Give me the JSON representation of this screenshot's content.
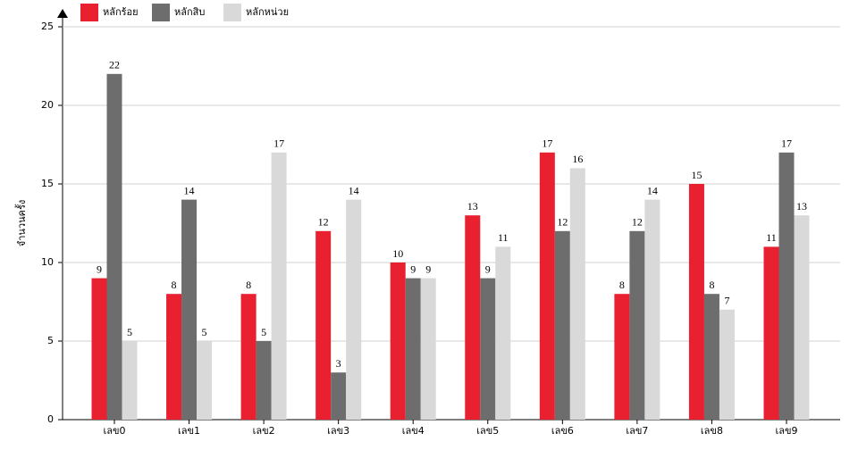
{
  "chart_data": {
    "type": "bar",
    "y_label": "จำนวนครั้ง",
    "categories": [
      "เลข0",
      "เลข1",
      "เลข2",
      "เลข3",
      "เลข4",
      "เลข5",
      "เลข6",
      "เลข7",
      "เลข8",
      "เลข9"
    ],
    "series": [
      {
        "name": "หลักร้อย",
        "color": "#e8202f",
        "values": [
          9,
          8,
          8,
          12,
          10,
          13,
          17,
          8,
          15,
          11
        ]
      },
      {
        "name": "หลักสิบ",
        "color": "#6d6d6d",
        "values": [
          22,
          14,
          5,
          3,
          9,
          9,
          12,
          12,
          8,
          17
        ]
      },
      {
        "name": "หลักหน่วย",
        "color": "#d9d9d9",
        "values": [
          5,
          5,
          17,
          14,
          9,
          11,
          16,
          14,
          7,
          13
        ]
      }
    ],
    "ylim": [
      0,
      25
    ],
    "yticks": [
      0,
      5,
      10,
      15,
      20,
      25
    ],
    "grid": true
  }
}
